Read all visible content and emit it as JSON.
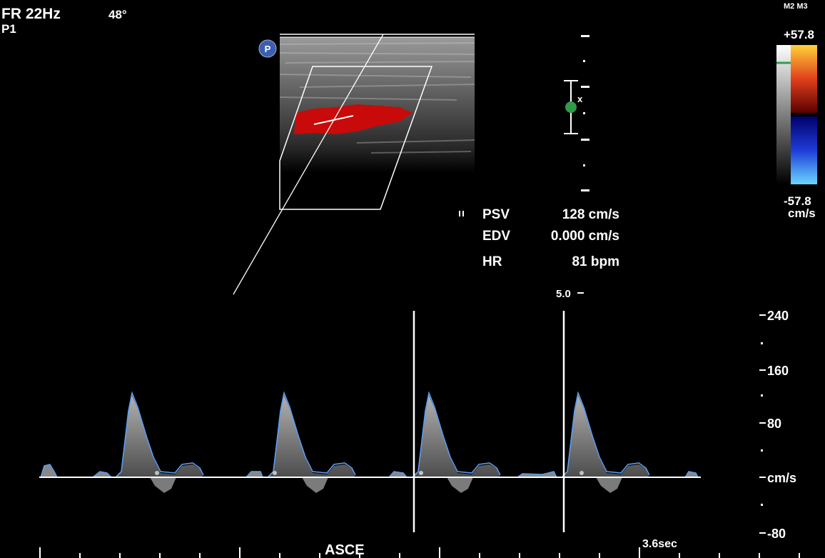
{
  "header": {
    "frame_rate": "FR 22Hz",
    "angle": "48°",
    "preset": "P1",
    "probe_icon": "P"
  },
  "color_scale": {
    "modes": "M2 M3",
    "max": "+57.8",
    "min": "-57.8",
    "unit": "cm/s"
  },
  "measurements": {
    "rows": [
      {
        "label": "PSV",
        "value": "128 cm/s"
      },
      {
        "label": "EDV",
        "value": "0.000 cm/s"
      },
      {
        "label": "HR",
        "value": "81 bpm"
      }
    ]
  },
  "depth_label": "5.0",
  "velocity_scale": {
    "labels": [
      "240",
      "160",
      "80",
      "cm/s",
      "-80"
    ]
  },
  "sweep": "3.6sec",
  "label": "ASCE"
}
